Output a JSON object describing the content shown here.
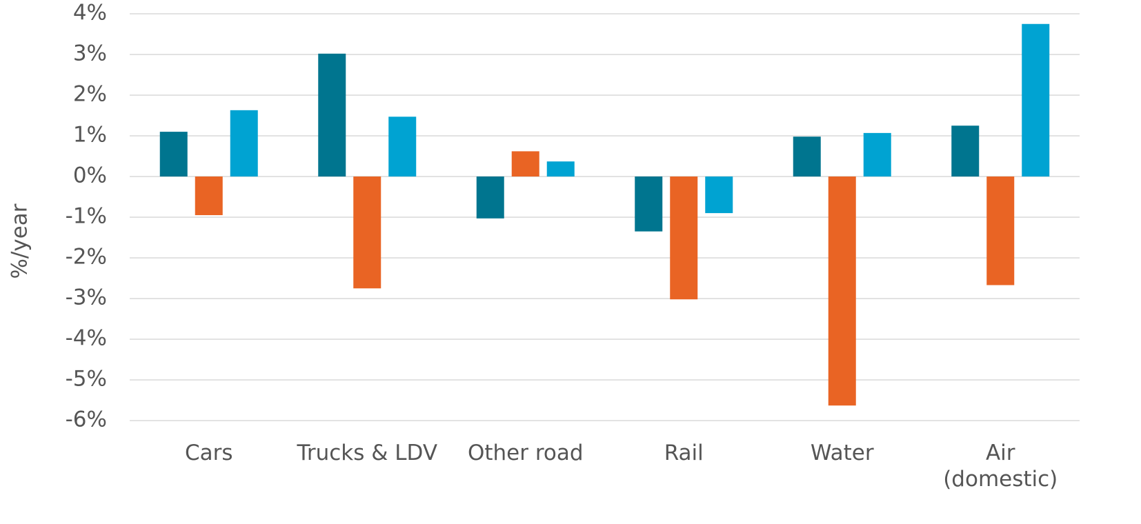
{
  "chart_data": {
    "type": "bar",
    "y_label": "%/year",
    "categories": [
      "Cars",
      "Trucks & LDV",
      "Other road",
      "Rail",
      "Water",
      "Air (domestic)"
    ],
    "series": [
      {
        "color": "#00758f",
        "values": [
          1.1,
          3.02,
          -1.03,
          -1.35,
          0.98,
          1.25
        ]
      },
      {
        "color": "#e96424",
        "values": [
          -0.95,
          -2.75,
          0.62,
          -3.02,
          -5.63,
          -2.67
        ]
      },
      {
        "color": "#00a3d2",
        "values": [
          1.63,
          1.47,
          0.37,
          -0.9,
          1.07,
          3.75
        ]
      }
    ],
    "ylim": [
      -6,
      4
    ],
    "yticks": [
      {
        "value": -6,
        "label": "-6%"
      },
      {
        "value": -5,
        "label": "-5%"
      },
      {
        "value": -4,
        "label": "-4%"
      },
      {
        "value": -3,
        "label": "-3%"
      },
      {
        "value": -2,
        "label": "-2%"
      },
      {
        "value": -1,
        "label": "-1%"
      },
      {
        "value": 0,
        "label": "0%"
      },
      {
        "value": 1,
        "label": "1%"
      },
      {
        "value": 2,
        "label": "2%"
      },
      {
        "value": 3,
        "label": "3%"
      },
      {
        "value": 4,
        "label": "4%"
      }
    ],
    "grid": true
  }
}
